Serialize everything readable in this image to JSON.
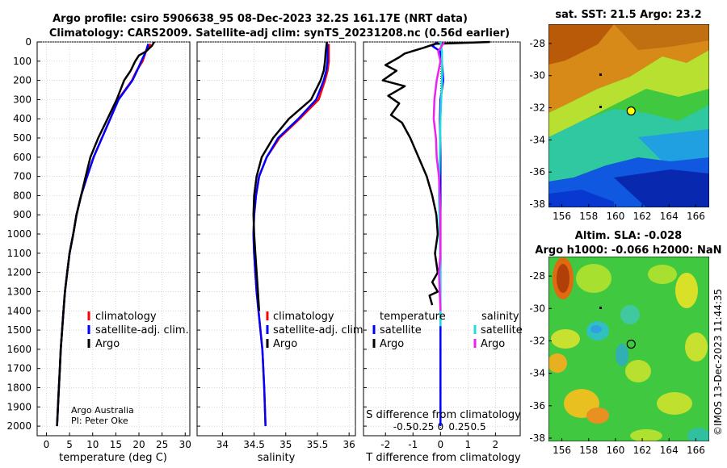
{
  "title": {
    "line1": "Argo profile: csiro 5906638_95 08-Dec-2023 32.2S 161.17E (NRT data)",
    "line2": "Climatology: CARS2009. Satellite-adj clim: synTS_20231208.nc (0.56d earlier)"
  },
  "colors": {
    "climatology": "#ff0000",
    "satellite_adj": "#0000ff",
    "argo": "#000000",
    "sal_diff_satellite": "#22dddd",
    "sal_diff_argo": "#ee22ee"
  },
  "chart_data": [
    {
      "id": "temperature",
      "type": "line",
      "xlabel": "temperature (deg C)",
      "ylabel": "",
      "xlim": [
        -2,
        31
      ],
      "xticks": [
        0,
        5,
        10,
        15,
        20,
        25,
        30
      ],
      "ylim": [
        0,
        2050
      ],
      "yticks": [
        0,
        100,
        200,
        300,
        400,
        500,
        600,
        700,
        800,
        900,
        1000,
        1100,
        1200,
        1300,
        1400,
        1500,
        1600,
        1700,
        1800,
        1900,
        2000
      ],
      "grid": true,
      "legend": [
        "climatology",
        "satellite-adj. clim.",
        "Argo"
      ],
      "annotation": [
        "Argo Australia",
        "PI: Peter Oke"
      ],
      "series": [
        {
          "name": "climatology",
          "color": "#ff0000",
          "x": [
            22.5,
            21.5,
            20.8,
            19.5,
            18.5,
            17.0,
            15.5,
            13.8,
            12.0,
            10.2,
            8.8,
            7.5,
            6.5,
            5.8,
            5.0,
            4.5,
            4.0,
            3.7,
            3.4,
            3.1,
            2.9,
            2.6,
            2.3
          ],
          "y": [
            10,
            50,
            100,
            150,
            200,
            250,
            300,
            400,
            500,
            600,
            700,
            800,
            900,
            1000,
            1100,
            1200,
            1300,
            1400,
            1500,
            1600,
            1700,
            1850,
            2000
          ]
        },
        {
          "name": "satellite-adj. clim.",
          "color": "#0000ff",
          "x": [
            22.0,
            21.5,
            20.5,
            19.6,
            18.6,
            17.1,
            15.6,
            13.8,
            12.0,
            10.2,
            8.8,
            7.5,
            6.5,
            5.8,
            5.0,
            4.5,
            4.0,
            3.7,
            3.4,
            3.1,
            2.9,
            2.6,
            2.3
          ],
          "y": [
            10,
            50,
            100,
            150,
            200,
            250,
            300,
            400,
            500,
            600,
            700,
            800,
            900,
            1000,
            1100,
            1200,
            1300,
            1400,
            1500,
            1600,
            1700,
            1850,
            2000
          ]
        },
        {
          "name": "Argo",
          "color": "#000000",
          "x": [
            23.3,
            22.8,
            21.5,
            20.0,
            19.2,
            18.2,
            16.8,
            15.2,
            13.2,
            11.2,
            9.5,
            8.5,
            7.5,
            6.5,
            5.8,
            5.0,
            4.5,
            4.0,
            3.7,
            3.4,
            3.1,
            2.9,
            2.6,
            2.3
          ],
          "y": [
            0,
            20,
            50,
            70,
            100,
            150,
            200,
            300,
            400,
            500,
            600,
            700,
            800,
            900,
            1000,
            1100,
            1200,
            1300,
            1400,
            1500,
            1600,
            1700,
            1850,
            2000
          ]
        }
      ]
    },
    {
      "id": "salinity",
      "type": "line",
      "xlabel": "salinity",
      "ylabel": "",
      "xlim": [
        33.6,
        36.1
      ],
      "xticks": [
        34,
        34.5,
        35,
        35.5,
        36
      ],
      "ylim": [
        0,
        2050
      ],
      "grid": true,
      "legend": [
        "climatology",
        "satellite-adj. clim.",
        "Argo"
      ],
      "series": [
        {
          "name": "climatology",
          "color": "#ff0000",
          "x": [
            35.68,
            35.68,
            35.68,
            35.66,
            35.62,
            35.52,
            35.22,
            34.9,
            34.7,
            34.58,
            34.53,
            34.5,
            34.49,
            34.5,
            34.52,
            34.54,
            34.57,
            34.6,
            34.63,
            34.66,
            34.68
          ],
          "y": [
            10,
            50,
            100,
            150,
            200,
            300,
            400,
            500,
            600,
            700,
            800,
            900,
            1000,
            1100,
            1200,
            1300,
            1400,
            1500,
            1600,
            1800,
            2000
          ]
        },
        {
          "name": "satellite-adj. clim.",
          "color": "#0000ff",
          "x": [
            35.66,
            35.66,
            35.66,
            35.64,
            35.6,
            35.48,
            35.2,
            34.88,
            34.7,
            34.58,
            34.53,
            34.5,
            34.49,
            34.5,
            34.52,
            34.54,
            34.57,
            34.6,
            34.63,
            34.66,
            34.68
          ],
          "y": [
            10,
            50,
            100,
            150,
            200,
            300,
            400,
            500,
            600,
            700,
            800,
            900,
            1000,
            1100,
            1200,
            1300,
            1400,
            1500,
            1600,
            1800,
            2000
          ]
        },
        {
          "name": "Argo",
          "color": "#000000",
          "x": [
            35.65,
            35.63,
            35.62,
            35.6,
            35.55,
            35.4,
            35.05,
            34.8,
            34.62,
            34.54,
            34.5,
            34.49,
            34.5,
            34.52,
            34.54,
            34.56,
            34.58
          ],
          "y": [
            0,
            50,
            100,
            150,
            200,
            300,
            400,
            500,
            600,
            700,
            800,
            900,
            1000,
            1100,
            1200,
            1300,
            1400
          ]
        }
      ]
    },
    {
      "id": "difference",
      "type": "line",
      "xlabel": "T difference from climatology",
      "top_xlabel": "S difference from climatology",
      "xlim": [
        -2.8,
        2.9
      ],
      "xticks": [
        -2,
        -1,
        0,
        1,
        2
      ],
      "top_ticks": [
        -0.5,
        -0.25,
        0,
        0.25,
        0.5
      ],
      "top_tick_labels": [
        "-0.5",
        "-0.25",
        "0",
        "0.25",
        "0.5"
      ],
      "ylim": [
        0,
        2050
      ],
      "grid": true,
      "legend_left_title": "temperature",
      "legend_right_title": "salinity",
      "legend_left": [
        "satellite",
        "Argo"
      ],
      "legend_right": [
        "satellite",
        "Argo"
      ],
      "series": [
        {
          "name": "T satellite",
          "color": "#0000ff",
          "x": [
            -0.1,
            -0.3,
            0,
            0.05,
            0.1,
            0,
            -0.02,
            0,
            0,
            0,
            0,
            0,
            0,
            0,
            0,
            0
          ],
          "y": [
            0,
            20,
            50,
            100,
            200,
            300,
            400,
            600,
            800,
            1000,
            1200,
            1300,
            1400,
            1600,
            1800,
            2000
          ]
        },
        {
          "name": "T Argo",
          "color": "#000000",
          "x": [
            1.8,
            -0.2,
            -0.6,
            -1.3,
            -1.5,
            -2.0,
            -1.6,
            -2.1,
            -1.3,
            -1.9,
            -1.5,
            -1.8,
            -1.4,
            -1.1,
            -0.8,
            -0.5,
            -0.3,
            -0.15,
            -0.1,
            -0.2,
            -0.1,
            -0.3,
            -0.1,
            -0.4,
            -0.3
          ],
          "y": [
            0,
            10,
            30,
            60,
            80,
            120,
            150,
            200,
            230,
            280,
            320,
            380,
            420,
            500,
            600,
            700,
            800,
            900,
            1000,
            1100,
            1200,
            1250,
            1300,
            1320,
            1370
          ]
        },
        {
          "name": "S satellite",
          "color": "#22dddd",
          "x": [
            0.0,
            0.02,
            0.02,
            0.0,
            -0.01,
            -0.02,
            -0.01,
            0.0,
            0.0,
            0.0,
            0.0
          ],
          "y": [
            0,
            50,
            200,
            400,
            600,
            800,
            1000,
            1200,
            1400,
            1450,
            1480
          ]
        },
        {
          "name": "S Argo",
          "color": "#ee22ee",
          "x": [
            0.05,
            -0.03,
            0.0,
            -0.05,
            -0.08,
            -0.09,
            -0.06,
            -0.05,
            -0.02,
            -0.01,
            0.0,
            0.0,
            0.0,
            -0.02,
            0.0
          ],
          "y": [
            0,
            50,
            100,
            200,
            300,
            400,
            500,
            600,
            700,
            800,
            900,
            1000,
            1100,
            1200,
            1400
          ]
        }
      ]
    },
    {
      "id": "sst_map",
      "type": "heatmap",
      "title": "sat. SST: 21.5 Argo: 23.2",
      "xlim": [
        155,
        167
      ],
      "ylim": [
        -38.2,
        -26.8
      ],
      "xticks": [
        156,
        158,
        160,
        162,
        164,
        166
      ],
      "yticks": [
        -28,
        -30,
        -32,
        -34,
        -36,
        -38
      ],
      "argo_position": [
        161.17,
        -32.2
      ]
    },
    {
      "id": "sla_map",
      "type": "heatmap",
      "title_line1": "Altim. SLA: -0.028",
      "title_line2": "Argo h1000: -0.066 h2000: NaN",
      "xlim": [
        155,
        167
      ],
      "ylim": [
        -38.2,
        -26.8
      ],
      "xticks": [
        156,
        158,
        160,
        162,
        164,
        166
      ],
      "yticks": [
        -28,
        -30,
        -32,
        -34,
        -36,
        -38
      ],
      "argo_position": [
        161.17,
        -32.2
      ]
    }
  ],
  "watermark": "©IMOS 13-Dec-2023 11:44:35"
}
